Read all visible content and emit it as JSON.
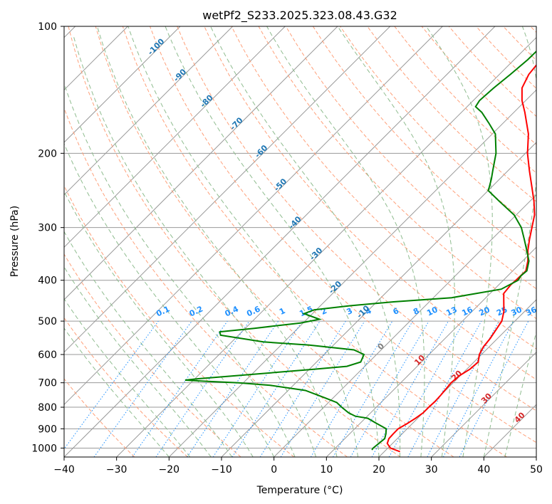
{
  "chart_data": {
    "type": "line",
    "subtype": "skew-t log-p",
    "title": "wetPf2_S233.2025.323.08.43.G32",
    "xlabel": "Temperature (°C)",
    "ylabel": "Pressure (hPa)",
    "xlim": [
      -40,
      50
    ],
    "ylim": [
      1050,
      100
    ],
    "y_scale": "log",
    "grid": true,
    "x_ticks": [
      "−40",
      "−30",
      "−20",
      "−10",
      "0",
      "10",
      "20",
      "30",
      "40",
      "50"
    ],
    "y_ticks": [
      "100",
      "200",
      "300",
      "400",
      "500",
      "600",
      "700",
      "800",
      "900",
      "1000"
    ],
    "y_tick_values": [
      100,
      200,
      300,
      400,
      500,
      600,
      700,
      800,
      900,
      1000
    ],
    "dry_adiabat_labels": [
      "-100",
      "-90",
      "-80",
      "-70",
      "-60",
      "-50",
      "-40",
      "-30",
      "-20",
      "-10",
      "0",
      "10",
      "20",
      "30",
      "40"
    ],
    "mixing_ratio_labels": [
      "0.1",
      "0.2",
      "0.4",
      "0.6",
      "1",
      "1.5",
      "2",
      "3",
      "4",
      "6",
      "8",
      "10",
      "13",
      "16",
      "20",
      "25",
      "30",
      "36"
    ],
    "colors": {
      "temperature": "#ff0000",
      "dewpoint": "#008000",
      "isotherm": "#999999",
      "dry_adiabat": "#ffa07a",
      "moist_adiabat": "#8fbc8f",
      "mixing_ratio": "#1e90ff",
      "label_blue": "#1f77b4",
      "label_red": "#d62728",
      "label_grey": "#7f7f7f"
    },
    "series": [
      {
        "name": "Temperature",
        "points": [
          [
            1020,
            23.0
          ],
          [
            1000,
            20.5
          ],
          [
            975,
            19.0
          ],
          [
            950,
            18.4
          ],
          [
            925,
            18.3
          ],
          [
            900,
            18.3
          ],
          [
            875,
            19.0
          ],
          [
            850,
            19.6
          ],
          [
            825,
            20.0
          ],
          [
            800,
            20.0
          ],
          [
            775,
            20.1
          ],
          [
            750,
            20.0
          ],
          [
            700,
            19.6
          ],
          [
            675,
            19.8
          ],
          [
            650,
            20.6
          ],
          [
            625,
            20.8
          ],
          [
            600,
            19.6
          ],
          [
            575,
            18.9
          ],
          [
            550,
            18.6
          ],
          [
            500,
            17.5
          ],
          [
            475,
            16.1
          ],
          [
            450,
            14.2
          ],
          [
            430,
            12.6
          ],
          [
            410,
            12.3
          ],
          [
            400,
            12.4
          ],
          [
            380,
            12.5
          ],
          [
            360,
            11.0
          ],
          [
            340,
            9.0
          ],
          [
            320,
            7.2
          ],
          [
            300,
            5.4
          ],
          [
            280,
            3.5
          ],
          [
            260,
            0.8
          ],
          [
            240,
            -2.4
          ],
          [
            220,
            -5.9
          ],
          [
            200,
            -9.6
          ],
          [
            180,
            -13.1
          ],
          [
            160,
            -17.9
          ],
          [
            150,
            -20.7
          ],
          [
            140,
            -23.1
          ],
          [
            130,
            -24.4
          ],
          [
            120,
            -24.9
          ],
          [
            110,
            -24.3
          ],
          [
            105,
            -23.4
          ],
          [
            100,
            -23.4
          ]
        ]
      },
      {
        "name": "Dewpoint",
        "points": [
          [
            1010,
            17.3
          ],
          [
            1000,
            17.2
          ],
          [
            975,
            17.4
          ],
          [
            950,
            17.6
          ],
          [
            925,
            16.9
          ],
          [
            900,
            16.0
          ],
          [
            870,
            12.7
          ],
          [
            850,
            10.5
          ],
          [
            840,
            7.7
          ],
          [
            825,
            5.8
          ],
          [
            800,
            3.4
          ],
          [
            780,
            1.6
          ],
          [
            760,
            -1.6
          ],
          [
            730,
            -6.7
          ],
          [
            710,
            -14.4
          ],
          [
            700,
            -20.9
          ],
          [
            695,
            -27.0
          ],
          [
            690,
            -31.6
          ],
          [
            685,
            -29.5
          ],
          [
            675,
            -23.5
          ],
          [
            650,
            -9.0
          ],
          [
            640,
            -3.4
          ],
          [
            625,
            -1.6
          ],
          [
            600,
            -2.4
          ],
          [
            585,
            -5.2
          ],
          [
            570,
            -14.6
          ],
          [
            560,
            -24.0
          ],
          [
            540,
            -33.4
          ],
          [
            530,
            -34.2
          ],
          [
            520,
            -28.3
          ],
          [
            505,
            -20.5
          ],
          [
            495,
            -17.6
          ],
          [
            480,
            -21.6
          ],
          [
            470,
            -20.4
          ],
          [
            460,
            -14.5
          ],
          [
            450,
            -6.8
          ],
          [
            440,
            3.5
          ],
          [
            420,
            11.3
          ],
          [
            400,
            12.8
          ],
          [
            390,
            12.5
          ],
          [
            380,
            12.7
          ],
          [
            360,
            11.2
          ],
          [
            340,
            8.8
          ],
          [
            320,
            6.2
          ],
          [
            300,
            3.4
          ],
          [
            280,
            -0.4
          ],
          [
            260,
            -5.8
          ],
          [
            245,
            -10.0
          ],
          [
            240,
            -10.5
          ],
          [
            230,
            -11.6
          ],
          [
            220,
            -12.9
          ],
          [
            200,
            -15.6
          ],
          [
            180,
            -19.4
          ],
          [
            170,
            -22.6
          ],
          [
            160,
            -26.1
          ],
          [
            155,
            -28.4
          ],
          [
            150,
            -28.8
          ],
          [
            140,
            -28.5
          ],
          [
            130,
            -27.9
          ],
          [
            120,
            -27.4
          ],
          [
            110,
            -27.3
          ],
          [
            100,
            -27.8
          ]
        ]
      }
    ]
  }
}
